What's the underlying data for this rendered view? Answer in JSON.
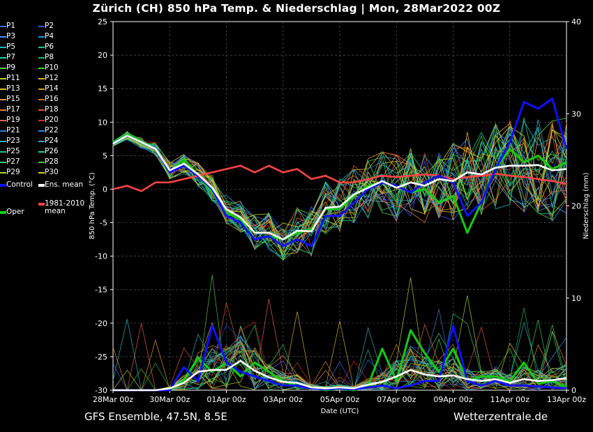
{
  "title": "Zürich  (CH)  850 hPa Temp. & Niederschlag | Mon, 28Mar2022 00Z",
  "footer": {
    "left": "GFS Ensemble, 47.5N, 8.5E",
    "right": "Wetterzentrale.de"
  },
  "colors": {
    "background": "#000000",
    "grid": "#555555",
    "axis": "#ffffff",
    "control": "#1010ff",
    "mean": "#ffffff",
    "oper": "#11cc11",
    "climate": "#ff4444"
  },
  "legend": {
    "members": [
      {
        "label": "P1",
        "color": "#3a6cff"
      },
      {
        "label": "P2",
        "color": "#2a55ff"
      },
      {
        "label": "P3",
        "color": "#4a8cff"
      },
      {
        "label": "P4",
        "color": "#1e9adf"
      },
      {
        "label": "P5",
        "color": "#22b7c9"
      },
      {
        "label": "P6",
        "color": "#22c38a"
      },
      {
        "label": "P7",
        "color": "#2ad0a8"
      },
      {
        "label": "P8",
        "color": "#2cb55a"
      },
      {
        "label": "P9",
        "color": "#55d43a"
      },
      {
        "label": "P10",
        "color": "#3cd428"
      },
      {
        "label": "P11",
        "color": "#b8d22a"
      },
      {
        "label": "P12",
        "color": "#d8b030"
      },
      {
        "label": "P13",
        "color": "#e0c030"
      },
      {
        "label": "P14",
        "color": "#e09a28"
      },
      {
        "label": "P15",
        "color": "#e89050"
      },
      {
        "label": "P16",
        "color": "#c87830"
      },
      {
        "label": "P17",
        "color": "#e07838"
      },
      {
        "label": "P18",
        "color": "#e05838"
      },
      {
        "label": "P19",
        "color": "#e86050"
      },
      {
        "label": "P20",
        "color": "#d03030"
      },
      {
        "label": "P21",
        "color": "#3a7ad0"
      },
      {
        "label": "P22",
        "color": "#2a8ae8"
      },
      {
        "label": "P23",
        "color": "#30b0d8"
      },
      {
        "label": "P24",
        "color": "#40a8c8"
      },
      {
        "label": "P25",
        "color": "#20c080"
      },
      {
        "label": "P26",
        "color": "#28d098"
      },
      {
        "label": "P27",
        "color": "#30d070"
      },
      {
        "label": "P28",
        "color": "#50c840"
      },
      {
        "label": "P29",
        "color": "#a8d828"
      },
      {
        "label": "P30",
        "color": "#d8d028"
      }
    ],
    "control": "Control",
    "ens_mean": "Ens. mean",
    "oper": "Oper",
    "climate_line1": "1981-2010",
    "climate_line2": "mean"
  },
  "chart_data": {
    "type": "line",
    "title": "Zürich  (CH)  850 hPa Temp. & Niederschlag | Mon, 28Mar2022 00Z",
    "xlabel": "Date (UTC)",
    "ylabel": "850 hPa Temp. (°C)",
    "y2label": "Niederschlag (mm)",
    "ylim": [
      -30,
      25
    ],
    "y2lim": [
      0,
      40
    ],
    "x_ticks": [
      "28Mar 00z",
      "30Mar 00z",
      "01Apr 00z",
      "03Apr 00z",
      "05Apr 00z",
      "07Apr 00z",
      "09Apr 00z",
      "11Apr 00z",
      "13Apr 00z"
    ],
    "y_ticks": [
      25,
      20,
      15,
      10,
      5,
      0,
      -5,
      -10,
      -15,
      -20,
      -25,
      -30
    ],
    "y2_ticks": [
      40,
      30,
      20,
      10,
      0
    ],
    "grid": true,
    "x_hours_max": 384,
    "temp_series": [
      {
        "name": "Control",
        "hours": [
          0,
          12,
          24,
          36,
          48,
          60,
          72,
          84,
          96,
          108,
          120,
          132,
          144,
          156,
          168,
          180,
          192,
          204,
          216,
          228,
          240,
          252,
          264,
          276,
          288,
          300,
          312,
          324,
          336,
          348,
          360,
          372,
          384
        ],
        "values": [
          6.8,
          8,
          7,
          6,
          2.5,
          3.5,
          2,
          0,
          -4,
          -5,
          -7.5,
          -7,
          -8.5,
          -7.5,
          -8.5,
          -4,
          -4,
          -2,
          0,
          1,
          0.5,
          -0.5,
          1,
          2,
          1,
          -4,
          -2,
          3,
          7,
          13,
          12,
          13.5,
          6
        ]
      },
      {
        "name": "Oper",
        "hours": [
          0,
          12,
          24,
          36,
          48,
          60,
          72,
          84,
          96,
          108,
          120,
          132,
          144,
          156,
          168,
          180,
          192,
          204,
          216,
          228,
          240,
          252,
          264,
          276,
          288,
          300,
          312,
          324,
          336,
          348,
          360,
          372,
          384
        ],
        "values": [
          7,
          8.3,
          7.2,
          6,
          2.5,
          4.5,
          2,
          -0.5,
          -3.5,
          -4.5,
          -7.5,
          -7,
          -7.5,
          -6.5,
          -6,
          -3,
          -3,
          -1,
          0.5,
          1,
          0.5,
          -0.5,
          0,
          -2,
          -1,
          -6.5,
          -2,
          3,
          6,
          4,
          5,
          3,
          4
        ]
      },
      {
        "name": "Ens. mean",
        "hours": [
          0,
          12,
          24,
          36,
          48,
          60,
          72,
          84,
          96,
          108,
          120,
          132,
          144,
          156,
          168,
          180,
          192,
          204,
          216,
          228,
          240,
          252,
          264,
          276,
          288,
          300,
          312,
          324,
          336,
          348,
          360,
          372,
          384
        ],
        "values": [
          6.8,
          8,
          7,
          6,
          2.8,
          3.8,
          2.2,
          0.2,
          -3,
          -4.2,
          -6.5,
          -6.5,
          -7.5,
          -6.2,
          -6.3,
          -2.8,
          -2.6,
          -0.8,
          0.2,
          1.2,
          0.2,
          1,
          0.5,
          1.5,
          1.2,
          2.5,
          2.2,
          3.2,
          3.5,
          3.5,
          3.6,
          2.8,
          3
        ]
      },
      {
        "name": "1981-2010 mean",
        "hours": [
          0,
          12,
          24,
          36,
          48,
          60,
          72,
          84,
          96,
          108,
          120,
          132,
          144,
          156,
          168,
          180,
          192,
          204,
          216,
          228,
          240,
          252,
          264,
          276,
          288,
          300,
          312,
          324,
          336,
          348,
          360,
          372,
          384
        ],
        "values": [
          0,
          0.5,
          -0.3,
          1,
          1,
          1.5,
          2,
          2.5,
          3,
          3.5,
          2.5,
          3.5,
          2.5,
          3,
          1.5,
          2,
          1,
          1,
          1.5,
          2,
          1.8,
          2,
          2.2,
          2,
          1.5,
          1.8,
          2,
          2.3,
          2,
          1.8,
          1.5,
          1.2,
          0.8
        ]
      }
    ],
    "precip_series": [
      {
        "name": "Control",
        "hours": [
          0,
          12,
          24,
          36,
          48,
          60,
          72,
          84,
          96,
          108,
          120,
          132,
          144,
          156,
          168,
          180,
          192,
          204,
          216,
          228,
          240,
          252,
          264,
          276,
          288,
          300,
          312,
          324,
          336,
          348,
          360,
          372,
          384
        ],
        "values": [
          0,
          0,
          0,
          0,
          0,
          2.5,
          1,
          7,
          3,
          2,
          1.5,
          1,
          0.5,
          0.5,
          0.2,
          0.1,
          0.2,
          0.1,
          0.3,
          0.5,
          0.2,
          0.5,
          1,
          1,
          7,
          1,
          0.5,
          1,
          0.5,
          0.5,
          0.4,
          0.3,
          0.2
        ]
      },
      {
        "name": "Oper",
        "hours": [
          0,
          12,
          24,
          36,
          48,
          60,
          72,
          84,
          96,
          108,
          120,
          132,
          144,
          156,
          168,
          180,
          192,
          204,
          216,
          228,
          240,
          252,
          264,
          276,
          288,
          300,
          312,
          324,
          336,
          348,
          360,
          372,
          384
        ],
        "values": [
          0,
          0,
          0,
          0,
          0,
          1,
          3.5,
          2,
          3,
          1.5,
          3,
          2,
          1,
          0.5,
          0.3,
          0,
          0.2,
          0,
          0.5,
          4.5,
          1,
          6.5,
          4,
          2,
          4.5,
          1,
          1.5,
          1.5,
          1,
          3,
          0.7,
          1,
          0.3
        ]
      },
      {
        "name": "Ens. mean",
        "hours": [
          0,
          12,
          24,
          36,
          48,
          60,
          72,
          84,
          96,
          108,
          120,
          132,
          144,
          156,
          168,
          180,
          192,
          204,
          216,
          228,
          240,
          252,
          264,
          276,
          288,
          300,
          312,
          324,
          336,
          348,
          360,
          372,
          384
        ],
        "values": [
          0,
          0,
          0,
          0,
          0.2,
          0.8,
          2,
          2.2,
          2.2,
          3.2,
          2.1,
          1.4,
          0.9,
          0.8,
          0.3,
          0.2,
          0.3,
          0.2,
          0.6,
          0.9,
          1.5,
          2.2,
          1.7,
          1.5,
          1.6,
          1.2,
          1.0,
          1.2,
          0.8,
          1.2,
          1.0,
          1.1,
          1.3
        ]
      }
    ]
  }
}
